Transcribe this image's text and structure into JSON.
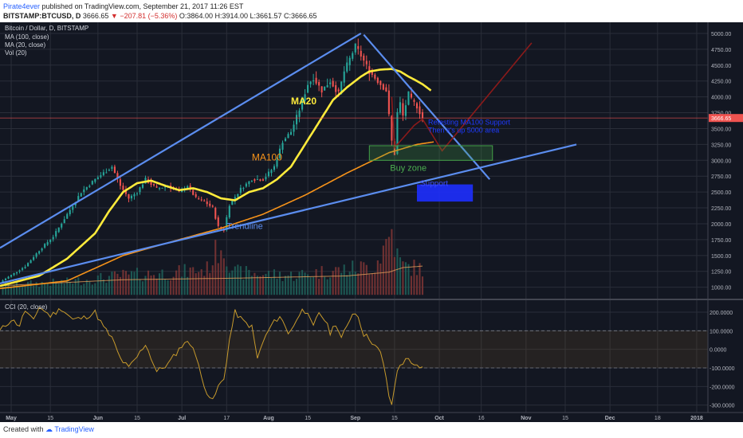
{
  "header": {
    "author": "Pirate4ever",
    "published": " published on TradingView.com, September 21, 2017 11:26 EST",
    "symbol": "BITSTAMP:BTCUSD, D",
    "price": "3666.65",
    "change": "−207.81 (−5.36%)",
    "ohlc": "O:3864.00 H:3914.00 L:3661.57 C:3666.65"
  },
  "footer": {
    "created_with": "Created with",
    "brand": "TradingView"
  },
  "colors": {
    "background": "#131722",
    "candle_up": "#26a69a",
    "candle_down": "#ef5350",
    "ma20": "#ffeb3b",
    "ma100": "#f7931a",
    "trendline": "#5b8def",
    "cci": "#c79a2c",
    "buy_zone": "#43a047",
    "blue_box": "#1e2fff"
  },
  "chart_data": [
    {
      "type": "candlestick",
      "title": "Bitcoin / Dollar, D, BITSTAMP",
      "indicators": [
        "MA (100, close)",
        "MA (20, close)",
        "Vol (20)"
      ],
      "y_ticks": [
        1000,
        1250,
        1500,
        1750,
        2000,
        2250,
        2500,
        2750,
        3000,
        3250,
        3500,
        3750,
        4000,
        4250,
        4500,
        4750,
        5000
      ],
      "y_tick_labels": [
        "1000.00",
        "1250.00",
        "1500.00",
        "1750.00",
        "2000.00",
        "2250.00",
        "2500.00",
        "2750.00",
        "3000.00",
        "3250.00",
        "3500.00",
        "3750.00",
        "4000.00",
        "4250.00",
        "4500.00",
        "4750.00",
        "5000.00"
      ],
      "ylim": [
        820,
        5150
      ],
      "x_tick_labels": [
        "May",
        "15",
        "Jun",
        "15",
        "Jul",
        "17",
        "Aug",
        "15",
        "Sep",
        "15",
        "Oct",
        "16",
        "Nov",
        "15",
        "Dec",
        "18",
        "2018"
      ],
      "x_tick_days": [
        0,
        14,
        31,
        45,
        61,
        77,
        92,
        106,
        123,
        137,
        153,
        168,
        184,
        198,
        214,
        231,
        245
      ],
      "xlim_days": [
        -4,
        249
      ],
      "price_anchors": {
        "days": [
          -4,
          5,
          10,
          15,
          20,
          25,
          30,
          33,
          36,
          39,
          42,
          45,
          48,
          52,
          56,
          60,
          63,
          66,
          69,
          72,
          74,
          76,
          78,
          82,
          86,
          90,
          94,
          97,
          100,
          103,
          106,
          108,
          111,
          114,
          117,
          119,
          121,
          123,
          125,
          128,
          130,
          132,
          134,
          136,
          137,
          138,
          139,
          140,
          142,
          143,
          145,
          147
        ],
        "values": [
          1080,
          1330,
          1580,
          1800,
          2150,
          2500,
          2700,
          2800,
          2900,
          2600,
          2400,
          2500,
          2700,
          2550,
          2600,
          2500,
          2600,
          2400,
          2350,
          2250,
          1950,
          1900,
          2300,
          2550,
          2700,
          2700,
          2900,
          3300,
          3450,
          3800,
          4200,
          4300,
          4100,
          4250,
          4050,
          4400,
          4600,
          4800,
          4650,
          4400,
          4300,
          4200,
          4100,
          3300,
          3100,
          3750,
          3900,
          3700,
          4050,
          3950,
          3850,
          3666
        ]
      },
      "ma20_anchors": {
        "days": [
          -4,
          10,
          20,
          30,
          35,
          40,
          45,
          50,
          55,
          60,
          65,
          70,
          75,
          80,
          85,
          90,
          95,
          100,
          105,
          110,
          115,
          120,
          125,
          128,
          132,
          136,
          139,
          142,
          145,
          147,
          150
        ],
        "values": [
          1020,
          1180,
          1450,
          1850,
          2200,
          2500,
          2640,
          2680,
          2600,
          2530,
          2560,
          2500,
          2400,
          2370,
          2500,
          2560,
          2700,
          2900,
          3250,
          3600,
          3950,
          4150,
          4320,
          4400,
          4430,
          4440,
          4400,
          4320,
          4250,
          4200,
          4100
        ]
      },
      "ma100_anchors": {
        "days": [
          -4,
          20,
          40,
          60,
          75,
          90,
          105,
          120,
          135,
          145,
          151
        ],
        "values": [
          980,
          1100,
          1500,
          1750,
          1930,
          2150,
          2450,
          2800,
          3120,
          3250,
          3290
        ]
      },
      "volume_profile": {
        "days": [
          -4,
          20,
          40,
          60,
          70,
          75,
          80,
          100,
          120,
          130,
          135,
          136,
          138,
          140,
          147
        ],
        "values": [
          0.15,
          0.2,
          0.3,
          0.35,
          0.4,
          0.8,
          0.35,
          0.3,
          0.4,
          0.45,
          0.9,
          1.0,
          0.6,
          0.45,
          0.4
        ]
      },
      "vol_ma_anchors": {
        "days": [
          -4,
          40,
          80,
          120,
          135,
          140,
          147
        ],
        "values": [
          0.12,
          0.2,
          0.22,
          0.25,
          0.3,
          0.36,
          0.38
        ]
      },
      "drawings": {
        "trendline_upper": {
          "from": [
            -4,
            1620
          ],
          "to": [
            125,
            5000
          ]
        },
        "trendline_lower": {
          "from": [
            -4,
            1060
          ],
          "to": [
            202,
            3250
          ]
        },
        "falling_line": {
          "from": [
            126,
            4980
          ],
          "to": [
            171,
            2700
          ]
        },
        "projection_red": [
          [
            136,
            4000
          ],
          [
            137,
            3200
          ],
          [
            144,
            3550
          ],
          [
            147,
            3650
          ],
          [
            154,
            3150
          ],
          [
            186,
            4850
          ]
        ],
        "buy_zone": {
          "days": [
            128,
            172
          ],
          "values": [
            3000,
            3230
          ]
        },
        "buy_zone_label": "Buy zone",
        "blue_box": {
          "days": [
            145,
            165
          ],
          "values": [
            2350,
            2620
          ]
        },
        "blue_box_label": "Support",
        "support_note": "Retesting MA100 Support\nThen it's up 5000 area",
        "ma20_label": "MA20",
        "ma100_label": "MA100",
        "trendline_label": "Trendline",
        "current_price_label": "3666.65",
        "current_price": 3666.65
      }
    },
    {
      "type": "line",
      "title": "CCI (20, close)",
      "y_ticks": [
        200,
        100,
        0,
        -100,
        -200,
        -300
      ],
      "y_tick_labels": [
        "200.0000",
        "100.0000",
        "0.0000",
        "-100.0000",
        "-200.0000",
        "-300.0000"
      ],
      "ylim": [
        -340,
        260
      ],
      "band": [
        -100,
        100
      ],
      "anchors": {
        "days": [
          -4,
          0,
          3,
          5,
          8,
          10,
          14,
          18,
          22,
          26,
          30,
          33,
          36,
          39,
          42,
          45,
          48,
          52,
          56,
          59,
          62,
          65,
          68,
          70,
          72,
          74,
          76,
          78,
          80,
          83,
          86,
          88,
          90,
          93,
          96,
          99,
          102,
          104,
          106,
          108,
          110,
          112,
          114,
          116,
          118,
          120,
          122,
          124,
          126,
          128,
          130,
          132,
          134,
          135,
          136,
          137,
          138,
          139,
          140,
          142,
          144,
          146,
          147
        ],
        "values": [
          100,
          160,
          130,
          210,
          150,
          230,
          180,
          220,
          160,
          170,
          200,
          120,
          60,
          -50,
          -100,
          -40,
          30,
          -120,
          -80,
          -20,
          40,
          20,
          -150,
          -230,
          -280,
          -200,
          -160,
          50,
          200,
          150,
          120,
          -50,
          40,
          130,
          180,
          90,
          150,
          230,
          180,
          120,
          200,
          160,
          90,
          140,
          60,
          120,
          200,
          180,
          80,
          60,
          20,
          -20,
          -150,
          -250,
          -310,
          -200,
          -120,
          -80,
          -70,
          -50,
          -80,
          -110,
          -100
        ]
      }
    }
  ]
}
